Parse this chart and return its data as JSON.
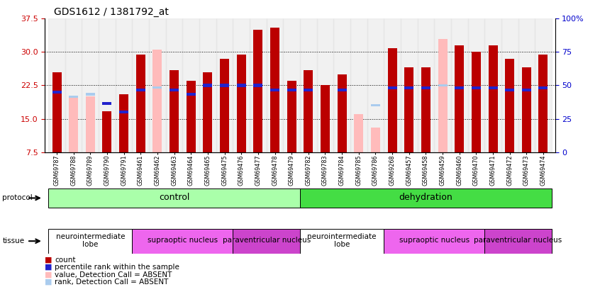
{
  "title": "GDS1612 / 1381792_at",
  "samples": [
    "GSM69787",
    "GSM69788",
    "GSM69789",
    "GSM69790",
    "GSM69791",
    "GSM69461",
    "GSM69462",
    "GSM69463",
    "GSM69464",
    "GSM69465",
    "GSM69475",
    "GSM69476",
    "GSM69477",
    "GSM69478",
    "GSM69479",
    "GSM69782",
    "GSM69783",
    "GSM69784",
    "GSM69785",
    "GSM69786",
    "GSM69268",
    "GSM69457",
    "GSM69458",
    "GSM69459",
    "GSM69460",
    "GSM69470",
    "GSM69471",
    "GSM69472",
    "GSM69473",
    "GSM69474"
  ],
  "count_vals": [
    25.5,
    null,
    null,
    16.7,
    20.5,
    29.5,
    null,
    26.0,
    23.5,
    25.5,
    28.5,
    29.5,
    35.0,
    35.5,
    23.5,
    26.0,
    22.5,
    25.0,
    null,
    null,
    30.8,
    26.5,
    26.5,
    null,
    31.5,
    30.0,
    31.5,
    28.5,
    26.5,
    29.5
  ],
  "absent_vals": [
    null,
    20.0,
    20.0,
    null,
    null,
    null,
    30.5,
    null,
    null,
    null,
    null,
    null,
    null,
    null,
    null,
    null,
    null,
    null,
    16.0,
    13.0,
    null,
    null,
    null,
    33.0,
    null,
    null,
    null,
    null,
    null,
    null
  ],
  "rank_vals": [
    21.0,
    null,
    null,
    18.5,
    16.5,
    21.5,
    null,
    21.5,
    20.5,
    22.5,
    22.5,
    22.5,
    22.5,
    21.5,
    21.5,
    21.5,
    null,
    21.5,
    null,
    null,
    22.0,
    22.0,
    22.0,
    null,
    22.0,
    22.0,
    22.0,
    21.5,
    21.5,
    22.0
  ],
  "absent_rank": [
    null,
    20.0,
    20.5,
    null,
    null,
    null,
    22.0,
    null,
    null,
    null,
    null,
    null,
    null,
    null,
    null,
    null,
    null,
    null,
    null,
    18.0,
    null,
    null,
    null,
    22.5,
    null,
    null,
    null,
    null,
    null,
    null
  ],
  "ymin": 7.5,
  "ymax": 37.5,
  "yticks_left": [
    7.5,
    15.0,
    22.5,
    30.0,
    37.5
  ],
  "yticks_right_pct": [
    0,
    25,
    50,
    75,
    100
  ],
  "bar_color": "#bb0000",
  "absent_bar_color": "#ffbbbb",
  "rank_color": "#2222cc",
  "absent_rank_color": "#aaccee",
  "bar_width": 0.55,
  "protocol_groups": [
    {
      "label": "control",
      "start": 0,
      "end": 14,
      "color": "#aaffaa"
    },
    {
      "label": "dehydration",
      "start": 15,
      "end": 29,
      "color": "#44dd44"
    }
  ],
  "tissue_groups": [
    {
      "label": "neurointermediate\nlobe",
      "start": 0,
      "end": 4,
      "color": "#ffffff"
    },
    {
      "label": "supraoptic nucleus",
      "start": 5,
      "end": 10,
      "color": "#ee66ee"
    },
    {
      "label": "paraventricular nucleus",
      "start": 11,
      "end": 14,
      "color": "#cc44cc"
    },
    {
      "label": "neurointermediate\nlobe",
      "start": 15,
      "end": 19,
      "color": "#ffffff"
    },
    {
      "label": "supraoptic nucleus",
      "start": 20,
      "end": 25,
      "color": "#ee66ee"
    },
    {
      "label": "paraventricular nucleus",
      "start": 26,
      "end": 29,
      "color": "#cc44cc"
    }
  ],
  "legend_items": [
    {
      "label": "count",
      "color": "#bb0000"
    },
    {
      "label": "percentile rank within the sample",
      "color": "#2222cc"
    },
    {
      "label": "value, Detection Call = ABSENT",
      "color": "#ffbbbb"
    },
    {
      "label": "rank, Detection Call = ABSENT",
      "color": "#aaccee"
    }
  ]
}
